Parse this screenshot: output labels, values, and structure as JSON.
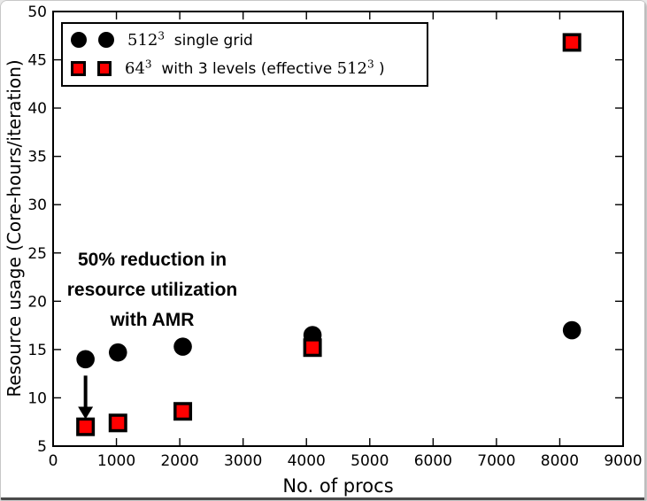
{
  "chart_data": {
    "type": "scatter",
    "title": "",
    "xlabel": "No. of procs",
    "ylabel": "Resource usage (Core-hours/iteration)",
    "xlim": [
      0,
      9000
    ],
    "ylim": [
      5,
      50
    ],
    "xticks": [
      0,
      1000,
      2000,
      3000,
      4000,
      5000,
      6000,
      7000,
      8000,
      9000
    ],
    "yticks": [
      5,
      10,
      15,
      20,
      25,
      30,
      35,
      40,
      45,
      50
    ],
    "grid": false,
    "legend_position": "upper-left",
    "series": [
      {
        "name": "512^3 single grid",
        "marker": "circle",
        "color": "#000000",
        "points": [
          [
            512,
            14.0
          ],
          [
            1024,
            14.7
          ],
          [
            2048,
            15.3
          ],
          [
            4096,
            16.5
          ],
          [
            8192,
            17.0
          ]
        ]
      },
      {
        "name": "64^3 with 3 levels (effective 512^3)",
        "marker": "square",
        "color": "#ff0000",
        "edge_color": "#000000",
        "points": [
          [
            512,
            7.0
          ],
          [
            1024,
            7.4
          ],
          [
            2048,
            8.6
          ],
          [
            4096,
            15.2
          ],
          [
            8192,
            46.8
          ]
        ]
      }
    ],
    "annotation": {
      "lines": [
        "50% reduction in",
        "resource utilization",
        "with AMR"
      ]
    },
    "arrow": {
      "x": 512,
      "from_y": 12.3,
      "to_y": 7.8,
      "color": "#000000"
    }
  },
  "legend": {
    "row1": {
      "math_base": "512",
      "math_sup": "3",
      "text": "  single grid"
    },
    "row2": {
      "math_base": "64",
      "math_sup": "3",
      "text_mid": "  with 3 levels (effective ",
      "math_base2": "512",
      "math_sup2": "3",
      "text_end": " )"
    }
  },
  "colors": {
    "marker_black": "#000000",
    "marker_red": "#ff0000",
    "frame": "#000000"
  }
}
